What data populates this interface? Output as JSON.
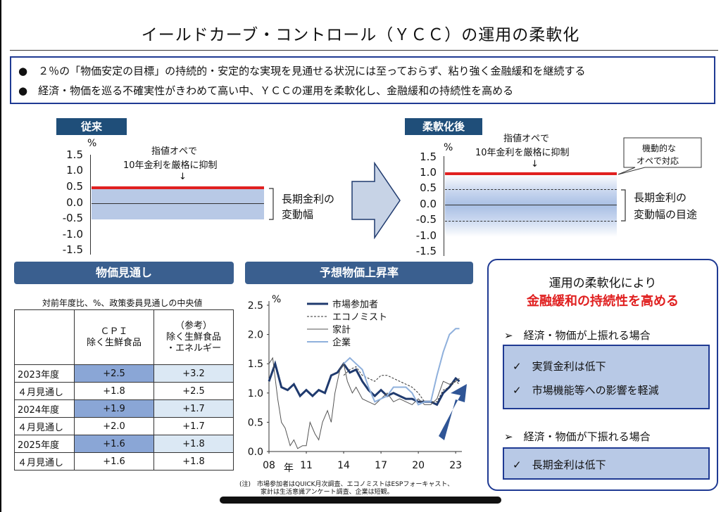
{
  "title": "イールドカーブ・コントロール（ＹＣＣ）の運用の柔軟化",
  "summary": [
    "●　２％の「物価安定の目標」の持続的・安定的な実現を見通せる状況には至っておらず、粘り強く金融緩和を継続する",
    "●　経済・物価を巡る不確実性がきわめて高い中、ＹＣＣの運用を柔軟化し、金融緩和の持続性を高める"
  ],
  "before": {
    "header": "従来",
    "unit": "%",
    "ticks": [
      "1.5",
      "1.0",
      "0.5",
      "0.0",
      "-0.5",
      "-1.0",
      "-1.5"
    ],
    "note_line1": "指値オペで",
    "note_line2": "10年金利を厳格に抑制",
    "note_arrow": "↓",
    "band_label_line1": "長期金利の",
    "band_label_line2": "変動幅"
  },
  "after": {
    "header": "柔軟化後",
    "unit": "%",
    "ticks": [
      "1.5",
      "1.0",
      "0.5",
      "0.0",
      "-0.5",
      "-1.0",
      "-1.5"
    ],
    "note_line1": "指値オペで",
    "note_line2": "10年金利を厳格に抑制",
    "note_arrow": "↓",
    "callout_line1": "機動的な",
    "callout_line2": "オペで対応",
    "band_label_line1": "長期金利の",
    "band_label_line2": "変動幅の目途"
  },
  "forecast": {
    "header": "物価見通し",
    "subtitle": "対前年度比、%、政策委員見通しの中央値",
    "col1_line1": "ＣＰＩ",
    "col1_line2": "除く生鮮食品",
    "col2_line1": "（参考）",
    "col2_line2": "除く生鮮食品",
    "col2_line3": "・エネルギー",
    "rows": [
      {
        "label": "2023年度",
        "v1": "+2.5",
        "v2": "+3.2",
        "main": true
      },
      {
        "label": "４月見通し",
        "v1": "+1.8",
        "v2": "+2.5",
        "main": false
      },
      {
        "label": "2024年度",
        "v1": "+1.9",
        "v2": "+1.7",
        "main": true
      },
      {
        "label": "４月見通し",
        "v1": "+2.0",
        "v2": "+1.7",
        "main": false
      },
      {
        "label": "2025年度",
        "v1": "+1.6",
        "v2": "+1.8",
        "main": true
      },
      {
        "label": "４月見通し",
        "v1": "+1.6",
        "v2": "+1.8",
        "main": false
      }
    ]
  },
  "chart_data": {
    "type": "line",
    "title": "予想物価上昇率",
    "ylabel": "%",
    "xlabel": "年",
    "ylim": [
      0,
      2.5
    ],
    "y_ticks": [
      "2.5",
      "2.0",
      "1.5",
      "1.0",
      "0.5",
      "0.0"
    ],
    "x_ticks": [
      "08",
      "11",
      "14",
      "17",
      "20",
      "23"
    ],
    "x_tick_years": [
      2008,
      2011,
      2014,
      2017,
      2020,
      2023
    ],
    "xlim": [
      2008,
      2023.5
    ],
    "series": [
      {
        "name": "市場参加者",
        "color": "#1f3a6e",
        "style": "bold",
        "x": [
          2008,
          2008.5,
          2009,
          2009.5,
          2010,
          2010.5,
          2011,
          2011.5,
          2012,
          2012.5,
          2013,
          2013.5,
          2014,
          2014.5,
          2015,
          2015.5,
          2016,
          2016.5,
          2017,
          2017.5,
          2018,
          2018.5,
          2019,
          2019.5,
          2020,
          2020.5,
          2021,
          2021.5,
          2022,
          2022.5,
          2023,
          2023.3
        ],
        "y": [
          1.2,
          1.5,
          1.1,
          1.05,
          1.15,
          0.95,
          1.05,
          0.95,
          1.05,
          1.0,
          1.3,
          1.35,
          1.5,
          1.35,
          1.4,
          1.2,
          1.05,
          0.95,
          1.05,
          0.95,
          1.0,
          0.95,
          0.9,
          0.9,
          0.85,
          0.85,
          0.85,
          0.8,
          1.0,
          1.1,
          1.25,
          1.2
        ]
      },
      {
        "name": "エコノミスト",
        "color": "#333333",
        "style": "dashed",
        "x": [
          2014,
          2014.5,
          2015,
          2015.5,
          2016,
          2016.5,
          2017,
          2017.5,
          2018,
          2018.5,
          2019,
          2019.5,
          2020,
          2020.5,
          2021,
          2021.5,
          2022,
          2022.5,
          2023,
          2023.3
        ],
        "y": [
          1.3,
          1.4,
          1.45,
          1.3,
          1.25,
          1.2,
          1.3,
          1.3,
          1.25,
          1.2,
          1.15,
          1.1,
          1.0,
          0.85,
          0.85,
          0.85,
          1.05,
          1.1,
          1.2,
          1.15
        ]
      },
      {
        "name": "家計",
        "color": "#555555",
        "style": "thin",
        "x": [
          2008,
          2008.3,
          2008.7,
          2009,
          2009.3,
          2009.7,
          2010,
          2010.3,
          2010.7,
          2011,
          2011.3,
          2011.7,
          2012,
          2012.3,
          2012.7,
          2013,
          2013.3,
          2013.7,
          2014,
          2014.3,
          2014.7,
          2015,
          2015.5,
          2016,
          2016.5,
          2017,
          2017.5,
          2018,
          2018.5,
          2019,
          2019.5,
          2020,
          2020.5,
          2021,
          2021.5,
          2022,
          2022.5,
          2023,
          2023.3
        ],
        "y": [
          1.5,
          1.6,
          0.9,
          0.5,
          0.4,
          0.1,
          0.2,
          0.05,
          0.1,
          0.1,
          0.5,
          0.3,
          0.2,
          0.5,
          0.7,
          0.5,
          1.0,
          1.4,
          1.5,
          1.2,
          1.0,
          1.1,
          0.9,
          0.85,
          0.8,
          0.9,
          1.0,
          0.85,
          0.9,
          0.85,
          0.8,
          0.9,
          0.8,
          0.8,
          0.9,
          1.2,
          1.15,
          1.2,
          1.25
        ]
      },
      {
        "name": "企業",
        "color": "#8fb0dc",
        "style": "normal",
        "x": [
          2014,
          2014.5,
          2015,
          2015.5,
          2016,
          2016.5,
          2017,
          2017.5,
          2018,
          2018.5,
          2019,
          2019.5,
          2020,
          2020.5,
          2021,
          2021.5,
          2022,
          2022.5,
          2023,
          2023.3
        ],
        "y": [
          1.5,
          1.6,
          1.5,
          1.4,
          1.1,
          0.85,
          0.9,
          0.95,
          1.1,
          1.1,
          1.1,
          1.0,
          0.8,
          0.85,
          0.85,
          1.3,
          1.7,
          2.0,
          2.1,
          2.1
        ]
      }
    ]
  },
  "note": {
    "line1": "(注)　市場参加者はQUICK月次調査、エコノミストはESPフォーキャスト、",
    "line2": "家計は生活意識アンケート調査、企業は短観。"
  },
  "panel": {
    "title_line1": "運用の柔軟化により",
    "title_line2": "金融緩和の持続性を高める",
    "case_up": "➢　経済・物価が上振れる場合",
    "up_item1": "✓　実質金利は低下",
    "up_item2": "✓　市場機能等への影響を軽減",
    "case_down": "➢　経済・物価が下振れる場合",
    "down_item1": "✓　長期金利は低下"
  },
  "colors": {
    "navy": "#1f4e79",
    "red": "#e02020",
    "band_light": "#b8c9e6",
    "band_dark": "#8aa6d6"
  }
}
